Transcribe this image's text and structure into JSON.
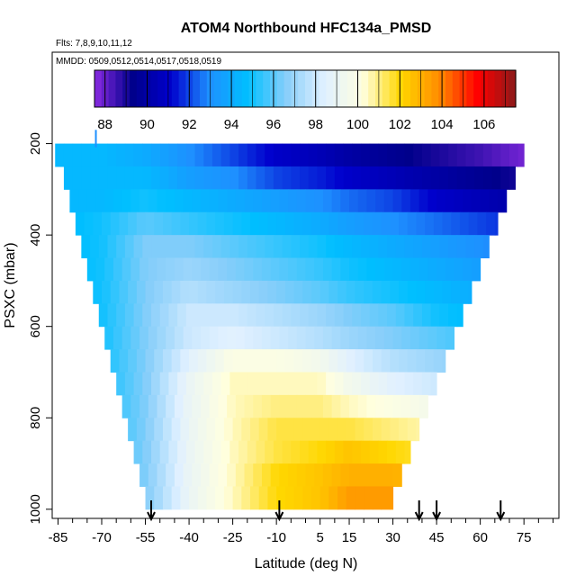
{
  "chart_data": {
    "type": "heatmap",
    "title": "ATOM4 Northbound HFC134a_PMSD",
    "subtitle_flights": "Flts: 7,8,9,10,11,12",
    "subtitle_dates": "MMDD: 0509,0512,0514,0517,0518,0519",
    "xlabel": "Latitude (deg N)",
    "ylabel": "PSXC (mbar)",
    "xlim": [
      -87,
      87
    ],
    "ylim": [
      1020,
      0
    ],
    "x_ticks": [
      "-85",
      "-70",
      "-55",
      "-40",
      "-25",
      "-10",
      "5",
      "15",
      "30",
      "45",
      "60",
      "75"
    ],
    "x_tick_values": [
      -85,
      -70,
      -55,
      -40,
      -25,
      -10,
      5,
      15,
      30,
      45,
      60,
      75
    ],
    "y_ticks": [
      "200",
      "400",
      "600",
      "800",
      "1000"
    ],
    "y_tick_values": [
      200,
      400,
      600,
      800,
      1000
    ],
    "colorbar": {
      "min": 87.5,
      "max": 107.5,
      "ticks": [
        "88",
        "90",
        "92",
        "94",
        "96",
        "98",
        "100",
        "102",
        "104",
        "106"
      ],
      "tick_values": [
        88,
        90,
        92,
        94,
        96,
        98,
        100,
        102,
        104,
        106
      ],
      "colors": [
        "#8a2be2",
        "#00008b",
        "#0000cd",
        "#1e90ff",
        "#00bfff",
        "#87cefa",
        "#e0f0ff",
        "#ffffe0",
        "#ffd700",
        "#ff8c00",
        "#ff0000",
        "#8b1a1a"
      ]
    },
    "grid": false,
    "pressure_levels": [
      225,
      275,
      325,
      375,
      425,
      475,
      525,
      575,
      625,
      675,
      725,
      775,
      825,
      875,
      925,
      975
    ],
    "level_lat_ranges": [
      [
        -86,
        75
      ],
      [
        -83,
        72
      ],
      [
        -81,
        69
      ],
      [
        -79,
        66
      ],
      [
        -77,
        63
      ],
      [
        -75,
        60
      ],
      [
        -73,
        57
      ],
      [
        -71,
        54
      ],
      [
        -69,
        51
      ],
      [
        -67,
        48
      ],
      [
        -65,
        45
      ],
      [
        -63,
        42
      ],
      [
        -61,
        39
      ],
      [
        -59,
        36
      ],
      [
        -57,
        33
      ],
      [
        -55,
        30
      ]
    ],
    "anchor_lats": [
      -85,
      -70,
      -55,
      -40,
      -25,
      -10,
      5,
      15,
      30,
      45,
      60,
      75
    ],
    "anchor_values": [
      [
        94.5,
        94.5,
        94.0,
        93.0,
        92.0,
        91.0,
        90.5,
        90.0,
        89.5,
        89.0,
        88.5,
        87.8
      ],
      [
        94.5,
        94.5,
        94.5,
        93.5,
        93.0,
        92.0,
        91.5,
        91.0,
        90.5,
        90.0,
        89.5,
        89.0
      ],
      [
        94.5,
        94.5,
        95.0,
        94.5,
        94.0,
        93.5,
        93.0,
        92.5,
        92.0,
        91.0,
        90.5,
        90.0
      ],
      [
        94.5,
        95.0,
        96.0,
        95.5,
        95.0,
        94.5,
        94.0,
        93.5,
        93.0,
        92.5,
        92.0,
        91.5
      ],
      [
        94.5,
        95.0,
        96.5,
        96.5,
        96.0,
        95.5,
        95.0,
        94.5,
        94.0,
        93.5,
        93.0,
        92.5
      ],
      [
        94.5,
        95.0,
        96.5,
        97.0,
        96.5,
        96.0,
        95.5,
        95.0,
        94.5,
        94.0,
        93.5,
        93.0
      ],
      [
        94.5,
        95.0,
        96.5,
        97.5,
        97.0,
        96.5,
        96.0,
        95.5,
        95.0,
        94.5,
        94.0,
        93.5
      ],
      [
        94.5,
        95.0,
        96.5,
        98.0,
        98.0,
        97.5,
        97.0,
        96.5,
        96.0,
        95.0,
        94.5,
        94.0
      ],
      [
        94.5,
        95.0,
        96.5,
        98.0,
        98.5,
        98.0,
        97.5,
        97.0,
        96.5,
        96.0,
        95.5,
        95.0
      ],
      [
        94.5,
        95.0,
        96.5,
        98.5,
        100.0,
        100.0,
        99.5,
        98.5,
        97.5,
        97.0,
        96.5,
        96.0
      ],
      [
        94.5,
        95.0,
        96.5,
        99.0,
        100.5,
        100.5,
        100.5,
        99.5,
        98.5,
        98.0,
        97.5,
        97.0
      ],
      [
        94.5,
        95.0,
        96.5,
        99.0,
        100.5,
        101.0,
        101.0,
        100.5,
        100.0,
        99.5,
        99.0,
        98.5
      ],
      [
        94.5,
        95.0,
        96.5,
        99.0,
        100.5,
        101.5,
        101.5,
        101.5,
        101.0,
        100.5,
        100.0,
        99.5
      ],
      [
        94.5,
        95.0,
        96.5,
        99.0,
        100.5,
        101.5,
        102.0,
        102.5,
        102.0,
        101.5,
        101.0,
        100.5
      ],
      [
        94.5,
        95.0,
        96.5,
        99.0,
        100.5,
        102.0,
        102.5,
        103.0,
        103.0,
        102.5,
        102.0,
        101.5
      ],
      [
        94.5,
        95.0,
        96.5,
        99.0,
        100.5,
        102.0,
        102.5,
        103.5,
        103.5,
        103.0,
        102.5,
        102.0
      ]
    ],
    "profile_arrows_lat": [
      -53,
      -9,
      39,
      45,
      67
    ],
    "tick_marks_lat": [
      -80,
      -75,
      -65,
      -60,
      -50,
      -45,
      -35,
      -30,
      -20,
      -15,
      -5,
      0,
      10,
      20,
      25,
      35,
      40,
      50,
      55,
      65,
      70,
      80,
      85
    ]
  }
}
